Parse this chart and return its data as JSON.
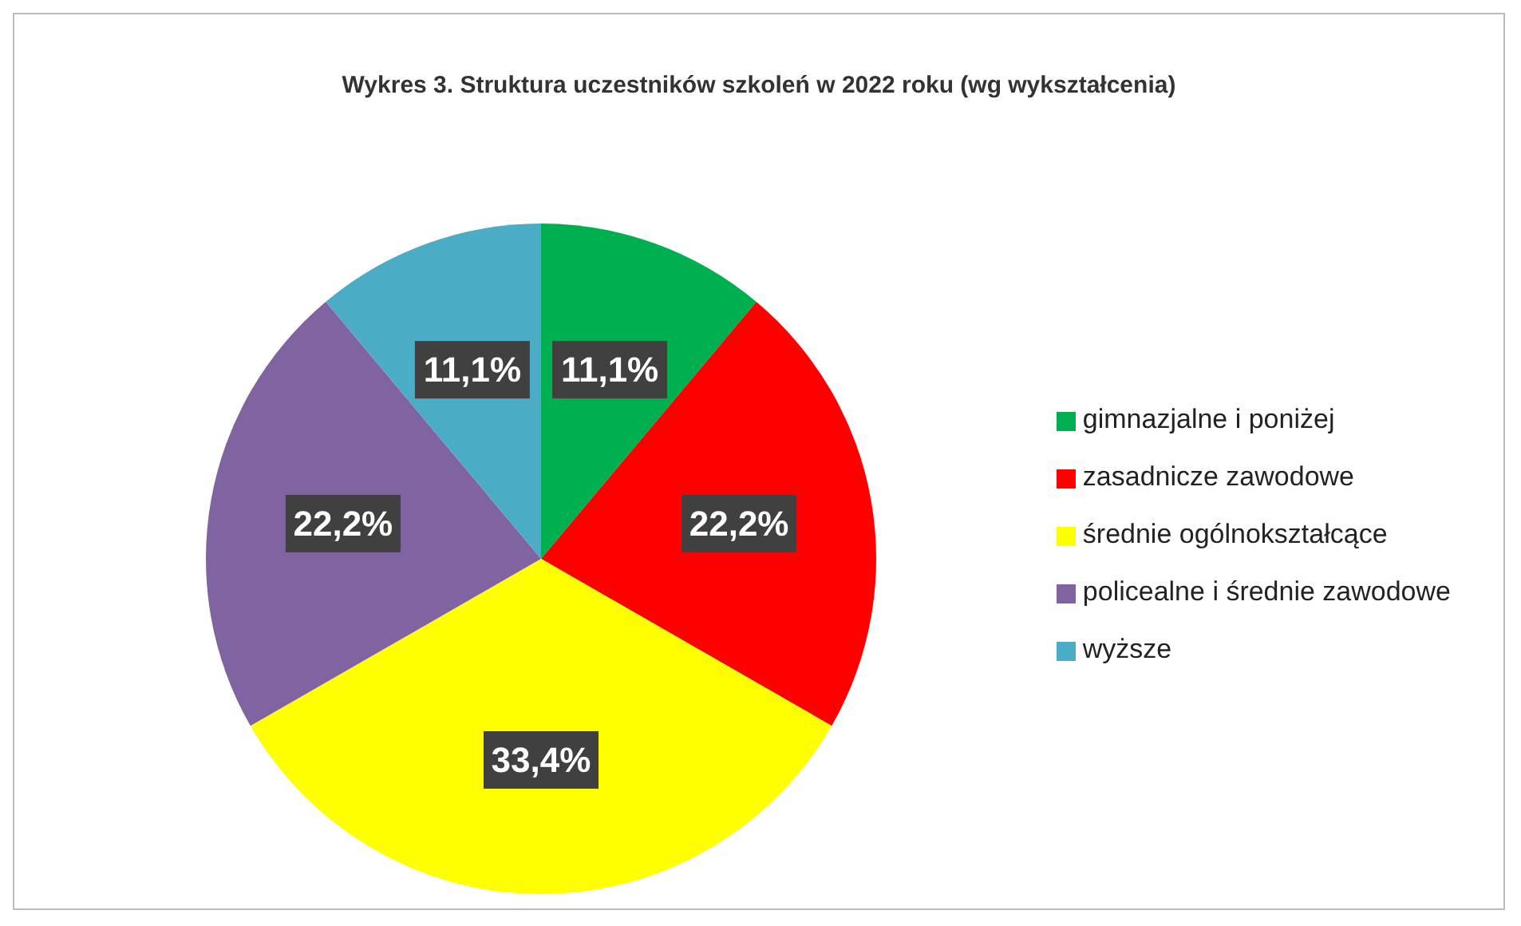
{
  "chart_data": {
    "type": "pie",
    "title": "Wykres 3. Struktura uczestników szkoleń w 2022 roku (wg wykształcenia)",
    "categories": [
      "gimnazjalne i poniżej",
      "zasadnicze zawodowe",
      "średnie ogólnokształcące",
      "policealne i średnie zawodowe",
      "wyższe"
    ],
    "values": [
      11.1,
      22.2,
      33.4,
      22.2,
      11.1
    ],
    "value_labels": [
      "11,1%",
      "22,2%",
      "33,4%",
      "22,2%",
      "11,1%"
    ],
    "colors": [
      "#00b050",
      "#ff0000",
      "#ffff00",
      "#8064a2",
      "#4bacc6"
    ],
    "legend": "right"
  }
}
